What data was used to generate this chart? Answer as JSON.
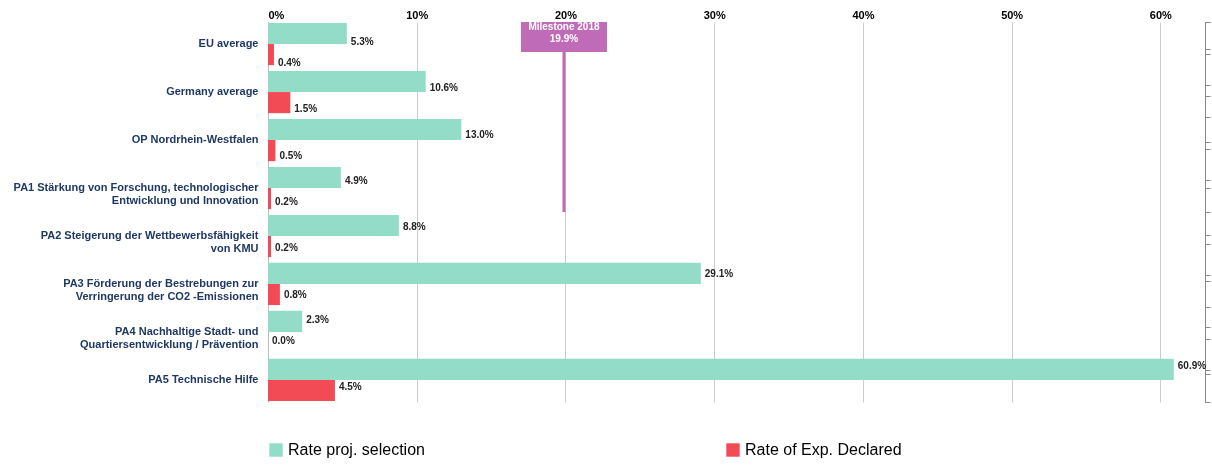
{
  "chart_data": {
    "type": "bar",
    "orientation": "horizontal",
    "categories": [
      "EU average",
      "Germany average",
      "OP Nordrhein-Westfalen",
      "PA1    Stärkung von Forschung, technologischer\nEntwicklung und Innovation",
      "PA2    Steigerung der Wettbewerbsfähigkeit\nvon KMU",
      "PA3    Förderung der Bestrebungen zur\nVerringerung der CO2 -Emissionen",
      "PA4    Nachhaltige Stadt- und\nQuartiersentwicklung / Prävention",
      "PA5    Technische Hilfe"
    ],
    "series": [
      {
        "name": "Rate proj. selection",
        "color": "#93dcc8",
        "values": [
          5.3,
          10.6,
          13.0,
          4.9,
          8.8,
          29.1,
          2.3,
          60.9
        ],
        "value_labels": [
          "5.3%",
          "10.6%",
          "13.0%",
          "4.9%",
          "8.8%",
          "29.1%",
          "2.3%",
          "60.9%"
        ]
      },
      {
        "name": "Rate of Exp. Declared",
        "color": "#f24b55",
        "values": [
          0.4,
          1.5,
          0.5,
          0.2,
          0.2,
          0.8,
          0.0,
          4.5
        ],
        "value_labels": [
          "0.4%",
          "1.5%",
          "0.5%",
          "0.2%",
          "0.2%",
          "0.8%",
          "0.0%",
          "4.5%"
        ]
      }
    ],
    "xlim": [
      0,
      63
    ],
    "xticks": [
      {
        "value": 0,
        "label": "0%"
      },
      {
        "value": 10,
        "label": "10%"
      },
      {
        "value": 20,
        "label": "20%"
      },
      {
        "value": 30,
        "label": "30%"
      },
      {
        "value": 40,
        "label": "40%"
      },
      {
        "value": 50,
        "label": "50%"
      },
      {
        "value": 60,
        "label": "60%"
      }
    ],
    "ref_lines": [
      {
        "axis": "x",
        "value": 19.9,
        "label": "Milestone 2018\n19.9%",
        "color": "#c06bb8"
      }
    ],
    "grid": "x",
    "legend": "bottom"
  }
}
